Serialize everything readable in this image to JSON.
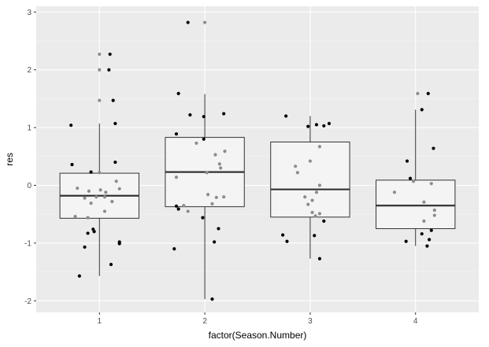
{
  "chart_data": {
    "type": "boxplot",
    "xlabel": "factor(Season.Number)",
    "ylabel": "res",
    "categories": [
      "1",
      "2",
      "3",
      "4"
    ],
    "ylim": [
      -2.2,
      3.1
    ],
    "y_ticks": [
      -2,
      -1,
      0,
      1,
      2,
      3
    ],
    "grid": true,
    "boxes": [
      {
        "category": "1",
        "whisker_low": -1.57,
        "q1": -0.57,
        "median": -0.18,
        "q3": 0.21,
        "whisker_high": 1.07
      },
      {
        "category": "2",
        "whisker_low": -1.97,
        "q1": -0.37,
        "median": 0.23,
        "q3": 0.83,
        "whisker_high": 1.58
      },
      {
        "category": "3",
        "whisker_low": -1.27,
        "q1": -0.55,
        "median": -0.07,
        "q3": 0.75,
        "whisker_high": 1.2
      },
      {
        "category": "4",
        "whisker_low": -1.05,
        "q1": -0.75,
        "median": -0.35,
        "q3": 0.09,
        "whisker_high": 1.31
      }
    ],
    "points": [
      {
        "category": "1",
        "x": 0.73,
        "y": 1.04
      },
      {
        "category": "1",
        "x": 0.86,
        "y": -1.07
      },
      {
        "category": "1",
        "x": 1.1,
        "y": 2.27
      },
      {
        "category": "1",
        "x": 1.09,
        "y": 2.0
      },
      {
        "category": "1",
        "x": 1.13,
        "y": 1.47
      },
      {
        "category": "1",
        "x": 1.15,
        "y": 1.07
      },
      {
        "category": "1",
        "x": 0.74,
        "y": 0.36
      },
      {
        "category": "1",
        "x": 0.92,
        "y": 0.23
      },
      {
        "category": "1",
        "x": 1.15,
        "y": 0.4
      },
      {
        "category": "1",
        "x": 0.89,
        "y": -0.83
      },
      {
        "category": "1",
        "x": 0.95,
        "y": -0.8
      },
      {
        "category": "1",
        "x": 0.94,
        "y": -0.76
      },
      {
        "category": "1",
        "x": 1.11,
        "y": -1.37
      },
      {
        "category": "1",
        "x": 0.81,
        "y": -1.57
      },
      {
        "category": "1",
        "x": 1.19,
        "y": -0.98
      },
      {
        "category": "1",
        "x": 1.19,
        "y": -1.01
      },
      {
        "category": "1",
        "x": 1.0,
        "y": 2.27,
        "gray": true
      },
      {
        "category": "1",
        "x": 1.0,
        "y": 2.0,
        "gray": true
      },
      {
        "category": "1",
        "x": 1.0,
        "y": 1.47,
        "gray": true
      },
      {
        "category": "1",
        "x": 1.0,
        "y": 0.22,
        "gray": true
      },
      {
        "category": "1",
        "x": 0.79,
        "y": -0.05,
        "gray": true
      },
      {
        "category": "1",
        "x": 0.9,
        "y": -0.1,
        "gray": true
      },
      {
        "category": "1",
        "x": 1.01,
        "y": -0.08,
        "gray": true
      },
      {
        "category": "1",
        "x": 1.06,
        "y": -0.12,
        "gray": true
      },
      {
        "category": "1",
        "x": 1.16,
        "y": 0.07,
        "gray": true
      },
      {
        "category": "1",
        "x": 1.19,
        "y": -0.06,
        "gray": true
      },
      {
        "category": "1",
        "x": 0.86,
        "y": -0.22,
        "gray": true
      },
      {
        "category": "1",
        "x": 0.97,
        "y": -0.2,
        "gray": true
      },
      {
        "category": "1",
        "x": 1.05,
        "y": -0.2,
        "gray": true
      },
      {
        "category": "1",
        "x": 0.92,
        "y": -0.31,
        "gray": true
      },
      {
        "category": "1",
        "x": 1.12,
        "y": -0.28,
        "gray": true
      },
      {
        "category": "1",
        "x": 1.05,
        "y": -0.45,
        "gray": true
      },
      {
        "category": "1",
        "x": 0.77,
        "y": -0.54,
        "gray": true
      },
      {
        "category": "1",
        "x": 0.89,
        "y": -0.56,
        "gray": true
      },
      {
        "category": "2",
        "x": 1.75,
        "y": 1.59
      },
      {
        "category": "2",
        "x": 1.86,
        "y": 1.22
      },
      {
        "category": "2",
        "x": 1.99,
        "y": 1.19
      },
      {
        "category": "2",
        "x": 2.18,
        "y": 1.24
      },
      {
        "category": "2",
        "x": 1.73,
        "y": 0.89
      },
      {
        "category": "2",
        "x": 1.99,
        "y": 0.8
      },
      {
        "category": "2",
        "x": 1.73,
        "y": -0.36
      },
      {
        "category": "2",
        "x": 1.75,
        "y": -0.41
      },
      {
        "category": "2",
        "x": 1.98,
        "y": -0.56
      },
      {
        "category": "2",
        "x": 2.13,
        "y": -0.75
      },
      {
        "category": "2",
        "x": 2.09,
        "y": -0.98
      },
      {
        "category": "2",
        "x": 1.84,
        "y": 2.82
      },
      {
        "category": "2",
        "x": 1.71,
        "y": -1.1
      },
      {
        "category": "2",
        "x": 2.07,
        "y": -1.97
      },
      {
        "category": "2",
        "x": 2.0,
        "y": 2.82,
        "gray": true
      },
      {
        "category": "2",
        "x": 1.92,
        "y": 0.73,
        "gray": true
      },
      {
        "category": "2",
        "x": 2.1,
        "y": 0.53,
        "gray": true
      },
      {
        "category": "2",
        "x": 2.19,
        "y": 0.59,
        "gray": true
      },
      {
        "category": "2",
        "x": 2.14,
        "y": 0.37,
        "gray": true
      },
      {
        "category": "2",
        "x": 2.15,
        "y": 0.3,
        "gray": true
      },
      {
        "category": "2",
        "x": 2.02,
        "y": 0.22,
        "gray": true
      },
      {
        "category": "2",
        "x": 1.73,
        "y": 0.14,
        "gray": true
      },
      {
        "category": "2",
        "x": 2.03,
        "y": -0.16,
        "gray": true
      },
      {
        "category": "2",
        "x": 2.11,
        "y": -0.21,
        "gray": true
      },
      {
        "category": "2",
        "x": 2.18,
        "y": -0.2,
        "gray": true
      },
      {
        "category": "2",
        "x": 2.07,
        "y": -0.32,
        "gray": true
      },
      {
        "category": "2",
        "x": 1.8,
        "y": -0.35,
        "gray": true
      },
      {
        "category": "2",
        "x": 1.84,
        "y": -0.45,
        "gray": true
      },
      {
        "category": "3",
        "x": 2.77,
        "y": 1.2
      },
      {
        "category": "3",
        "x": 2.98,
        "y": 1.02
      },
      {
        "category": "3",
        "x": 3.06,
        "y": 1.05
      },
      {
        "category": "3",
        "x": 3.13,
        "y": 1.03
      },
      {
        "category": "3",
        "x": 3.18,
        "y": 1.07
      },
      {
        "category": "3",
        "x": 2.74,
        "y": -0.86
      },
      {
        "category": "3",
        "x": 2.78,
        "y": -0.97
      },
      {
        "category": "3",
        "x": 3.04,
        "y": -0.87
      },
      {
        "category": "3",
        "x": 3.13,
        "y": -0.62
      },
      {
        "category": "3",
        "x": 3.09,
        "y": -1.27
      },
      {
        "category": "3",
        "x": 3.09,
        "y": 0.67,
        "gray": true
      },
      {
        "category": "3",
        "x": 3.0,
        "y": 0.42,
        "gray": true
      },
      {
        "category": "3",
        "x": 2.86,
        "y": 0.33,
        "gray": true
      },
      {
        "category": "3",
        "x": 2.88,
        "y": 0.22,
        "gray": true
      },
      {
        "category": "3",
        "x": 3.09,
        "y": 0.0,
        "gray": true
      },
      {
        "category": "3",
        "x": 3.06,
        "y": -0.12,
        "gray": true
      },
      {
        "category": "3",
        "x": 2.95,
        "y": -0.2,
        "gray": true
      },
      {
        "category": "3",
        "x": 3.02,
        "y": -0.26,
        "gray": true
      },
      {
        "category": "3",
        "x": 2.98,
        "y": -0.33,
        "gray": true
      },
      {
        "category": "3",
        "x": 3.02,
        "y": -0.47,
        "gray": true
      },
      {
        "category": "3",
        "x": 3.09,
        "y": -0.49,
        "gray": true
      },
      {
        "category": "3",
        "x": 3.05,
        "y": -0.53,
        "gray": true
      },
      {
        "category": "4",
        "x": 4.12,
        "y": 1.59
      },
      {
        "category": "4",
        "x": 4.06,
        "y": 1.31
      },
      {
        "category": "4",
        "x": 4.17,
        "y": 0.64
      },
      {
        "category": "4",
        "x": 3.92,
        "y": 0.42
      },
      {
        "category": "4",
        "x": 3.95,
        "y": 0.12
      },
      {
        "category": "4",
        "x": 4.06,
        "y": -0.84
      },
      {
        "category": "4",
        "x": 4.15,
        "y": -0.78
      },
      {
        "category": "4",
        "x": 3.91,
        "y": -0.97
      },
      {
        "category": "4",
        "x": 4.13,
        "y": -0.94
      },
      {
        "category": "4",
        "x": 4.11,
        "y": -1.05
      },
      {
        "category": "4",
        "x": 4.02,
        "y": 1.59,
        "gray": true
      },
      {
        "category": "4",
        "x": 3.98,
        "y": 0.07,
        "gray": true
      },
      {
        "category": "4",
        "x": 4.15,
        "y": 0.03,
        "gray": true
      },
      {
        "category": "4",
        "x": 3.8,
        "y": -0.12,
        "gray": true
      },
      {
        "category": "4",
        "x": 4.08,
        "y": -0.29,
        "gray": true
      },
      {
        "category": "4",
        "x": 4.18,
        "y": -0.43,
        "gray": true
      },
      {
        "category": "4",
        "x": 4.18,
        "y": -0.52,
        "gray": true
      },
      {
        "category": "4",
        "x": 4.08,
        "y": -0.62,
        "gray": true
      }
    ]
  }
}
